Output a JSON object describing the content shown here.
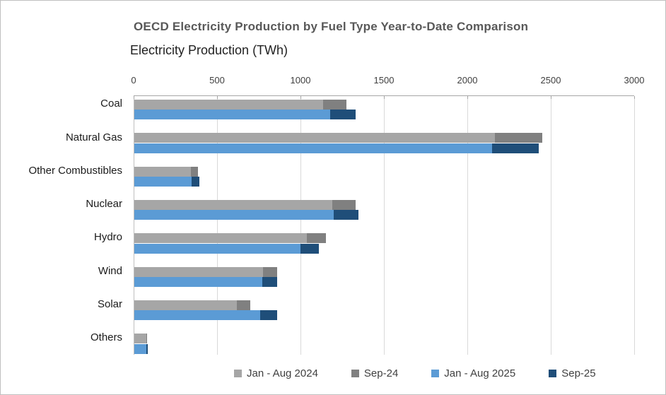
{
  "canvas": {
    "background_color": "#FFFFFF",
    "border_color": "#BFBFBF"
  },
  "chart_data": {
    "type": "bar",
    "orientation": "horizontal",
    "title": "OECD Electricity Production by Fuel Type Year-to-Date Comparison",
    "axis_title": "Electricity Production (TWh)",
    "xlabel": "Electricity Production (TWh)",
    "ylabel": "",
    "xlim": [
      0,
      3000
    ],
    "x_ticks": [
      0,
      500,
      1000,
      1500,
      2000,
      2500,
      3000
    ],
    "grid": true,
    "axis_position": "top",
    "legend_position": "bottom",
    "categories": [
      "Coal",
      "Natural Gas",
      "Other Combustibles",
      "Nuclear",
      "Hydro",
      "Wind",
      "Solar",
      "Others"
    ],
    "series": [
      {
        "name": "Jan - Aug 2024",
        "color": "#A6A6A6",
        "bar_group": "2024",
        "values": [
          1130,
          2160,
          340,
          1185,
          1035,
          770,
          615,
          70
        ]
      },
      {
        "name": "Sep-24",
        "color": "#808080",
        "bar_group": "2024",
        "values": [
          140,
          285,
          40,
          140,
          115,
          85,
          80,
          8
        ]
      },
      {
        "name": "Jan - Aug 2025",
        "color": "#5B9BD5",
        "bar_group": "2025",
        "values": [
          1175,
          2145,
          345,
          1195,
          995,
          765,
          755,
          70
        ]
      },
      {
        "name": "Sep-25",
        "color": "#1F4E79",
        "bar_group": "2025",
        "values": [
          150,
          280,
          45,
          150,
          110,
          90,
          100,
          10
        ]
      }
    ],
    "bar_group_totals_note": {
      "2024_totals": [
        1270,
        2445,
        380,
        1325,
        1150,
        855,
        695,
        78
      ],
      "2025_totals": [
        1325,
        2425,
        390,
        1345,
        1105,
        855,
        855,
        80
      ]
    }
  }
}
